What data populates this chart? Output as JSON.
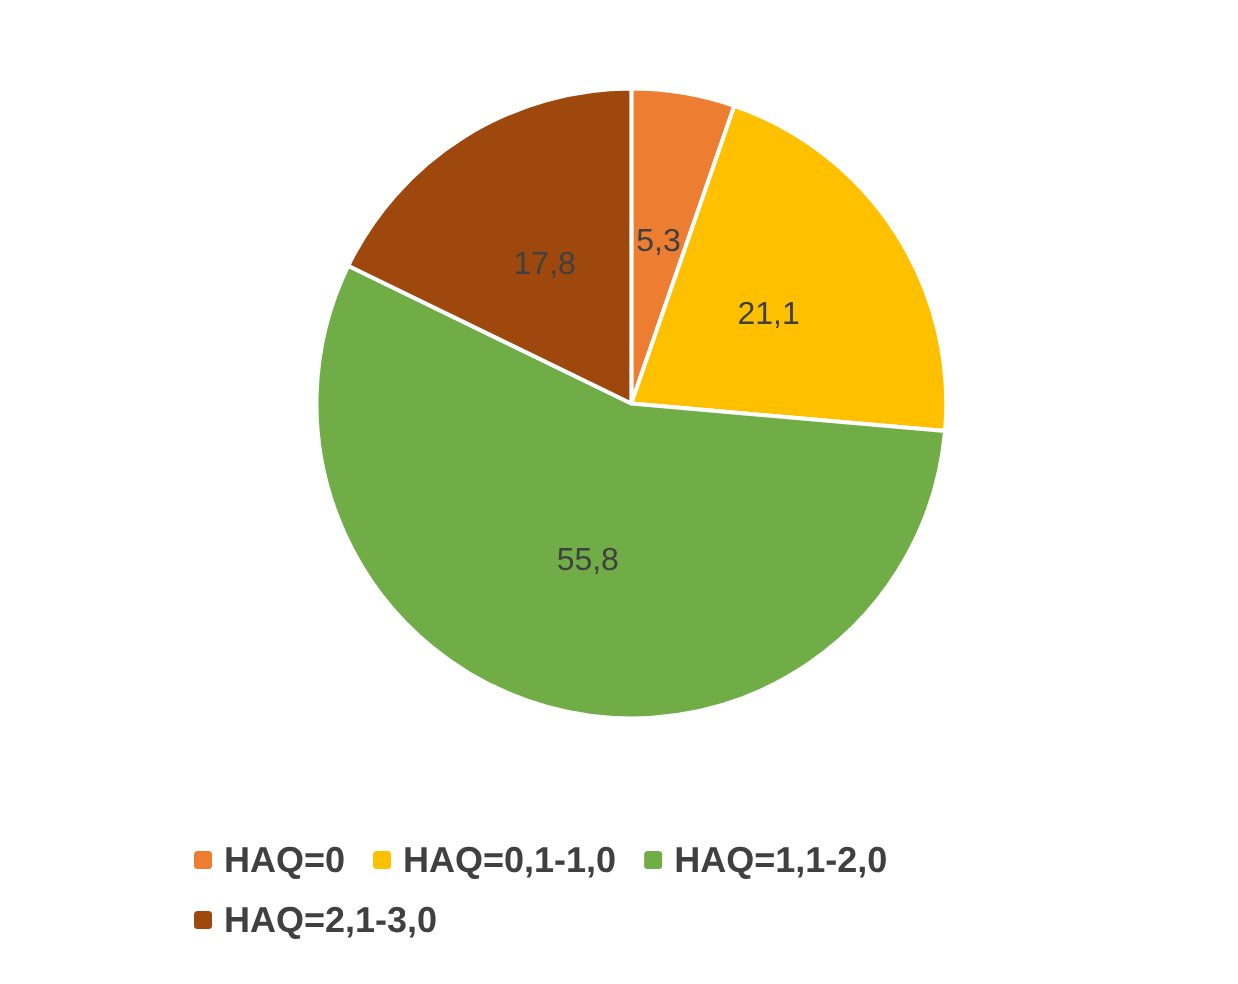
{
  "chart_data": {
    "type": "pie",
    "categories": [
      "HAQ=0",
      "HAQ=0,1-1,0",
      "HAQ=1,1-2,0",
      "HAQ=2,1-3,0"
    ],
    "values": [
      5.3,
      21.1,
      55.8,
      17.8
    ],
    "value_labels": [
      "5,3",
      "21,1",
      "55,8",
      "17,8"
    ],
    "colors": [
      "#ed7d31",
      "#ffc000",
      "#70ad47",
      "#9e480e"
    ],
    "legend": "bottom"
  }
}
